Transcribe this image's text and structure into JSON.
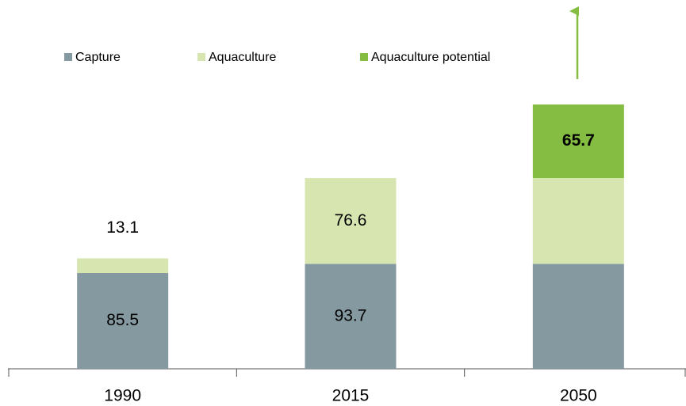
{
  "chart_data": {
    "type": "stacked-bar",
    "categories": [
      "1990",
      "2015",
      "2050"
    ],
    "series": [
      {
        "name": "Capture",
        "color": "#8599a0",
        "values": [
          85.5,
          93.7,
          93.7
        ],
        "value_labels": [
          "85.5",
          "93.7",
          null
        ],
        "label_color": "#ffffff"
      },
      {
        "name": "Aquaculture",
        "color": "#d7e6b1",
        "values": [
          13.1,
          76.6,
          76.6
        ],
        "value_labels": [
          "13.1",
          "76.6",
          null
        ],
        "label_color": "#000000"
      },
      {
        "name": "Aquaculture potential",
        "color": "#84bd41",
        "values": [
          null,
          null,
          65.7
        ],
        "value_labels": [
          null,
          null,
          "65.7"
        ],
        "label_color": "#ffffff",
        "label_bold": true
      }
    ],
    "ylim": [
      0,
      300
    ],
    "legend": "top-left"
  }
}
